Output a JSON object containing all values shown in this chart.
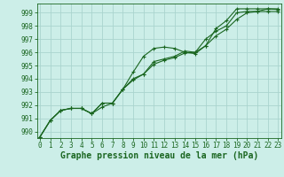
{
  "xlabel": "Graphe pression niveau de la mer (hPa)",
  "ylim": [
    989.5,
    999.7
  ],
  "xlim": [
    -0.3,
    23.3
  ],
  "yticks": [
    990,
    991,
    992,
    993,
    994,
    995,
    996,
    997,
    998,
    999
  ],
  "xticks": [
    0,
    1,
    2,
    3,
    4,
    5,
    6,
    7,
    8,
    9,
    10,
    11,
    12,
    13,
    14,
    15,
    16,
    17,
    18,
    19,
    20,
    21,
    22,
    23
  ],
  "bg_color": "#cceee8",
  "grid_color": "#aad4ce",
  "line_color": "#1a6620",
  "line1": [
    989.6,
    990.85,
    991.6,
    991.75,
    991.75,
    991.35,
    991.85,
    992.15,
    993.2,
    994.0,
    994.35,
    995.1,
    995.4,
    995.6,
    995.95,
    996.0,
    996.5,
    997.25,
    997.75,
    998.5,
    999.0,
    999.1,
    999.3,
    999.25
  ],
  "line2": [
    989.6,
    990.85,
    991.6,
    991.75,
    991.75,
    991.35,
    992.15,
    992.15,
    993.2,
    994.5,
    995.7,
    996.3,
    996.4,
    996.3,
    996.0,
    995.9,
    996.5,
    997.8,
    998.4,
    999.3,
    999.3,
    999.3,
    999.3,
    999.3
  ],
  "line3": [
    989.6,
    990.85,
    991.6,
    991.75,
    991.75,
    991.35,
    992.15,
    992.15,
    993.2,
    993.9,
    994.35,
    995.3,
    995.5,
    995.7,
    996.1,
    996.0,
    997.0,
    997.6,
    998.0,
    999.0,
    999.1,
    999.1,
    999.1,
    999.1
  ],
  "tick_fontsize": 5.5,
  "label_fontsize": 7.0
}
